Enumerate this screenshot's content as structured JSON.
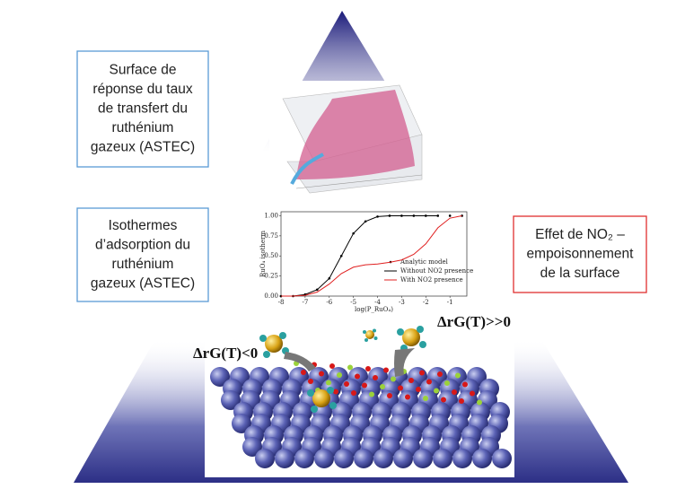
{
  "boxes": [
    {
      "lines": [
        "Surface de",
        "réponse du taux",
        "de transfert du",
        "ruthénium",
        "gazeux (ASTEC)"
      ],
      "color": "#5b9bd5"
    },
    {
      "lines": [
        "Isothermes",
        "d’adsorption du",
        "ruthénium",
        "gazeux (ASTEC)"
      ],
      "color": "#5b9bd5"
    },
    {
      "lines": [
        "Effet de NO₂ –",
        "empoisonnement",
        "de la surface"
      ],
      "color": "#e03030"
    }
  ],
  "energy_labels": [
    "ΔrG(T)<0",
    "ΔrG(T)>>0"
  ],
  "chart_data": {
    "type": "line",
    "x_label": "log(P_RuO₄)",
    "y_label": "RuO₄ isotherm",
    "xlim": [
      -8,
      -0.3
    ],
    "ylim": [
      0,
      1.05
    ],
    "xticks": [
      -8,
      -7,
      -6,
      -5,
      -4,
      -3,
      -2,
      -1
    ],
    "yticks": [
      {
        "value": 0,
        "label": "0.00"
      },
      {
        "value": 0.25,
        "label": "0.25"
      },
      {
        "value": 0.5,
        "label": "0.50"
      },
      {
        "value": 0.75,
        "label": "0.75"
      },
      {
        "value": 1,
        "label": "1.00"
      }
    ],
    "x": [
      -8,
      -7.5,
      -7,
      -6.5,
      -6,
      -5.5,
      -5,
      -4.5,
      -4,
      -3.5,
      -3,
      -2.5,
      -2,
      -1.5,
      -1,
      -0.5
    ],
    "series": [
      {
        "name": "Analytic model",
        "color": "#000000",
        "marker": true,
        "values": [
          0,
          0,
          0.02,
          0.08,
          0.22,
          0.5,
          0.78,
          0.93,
          0.99,
          1,
          1,
          1,
          1,
          1,
          1,
          1
        ]
      },
      {
        "name": "Without NO2 presence",
        "color": "#000000",
        "values": [
          0,
          0,
          0.02,
          0.08,
          0.22,
          0.5,
          0.78,
          0.93,
          0.99,
          1,
          1,
          1,
          1,
          1,
          null,
          null
        ]
      },
      {
        "name": "With NO2 presence",
        "color": "#e02020",
        "values": [
          0,
          0,
          0.01,
          0.05,
          0.15,
          0.28,
          0.36,
          0.39,
          0.4,
          0.42,
          0.45,
          0.52,
          0.65,
          0.85,
          0.97,
          1
        ]
      }
    ]
  }
}
